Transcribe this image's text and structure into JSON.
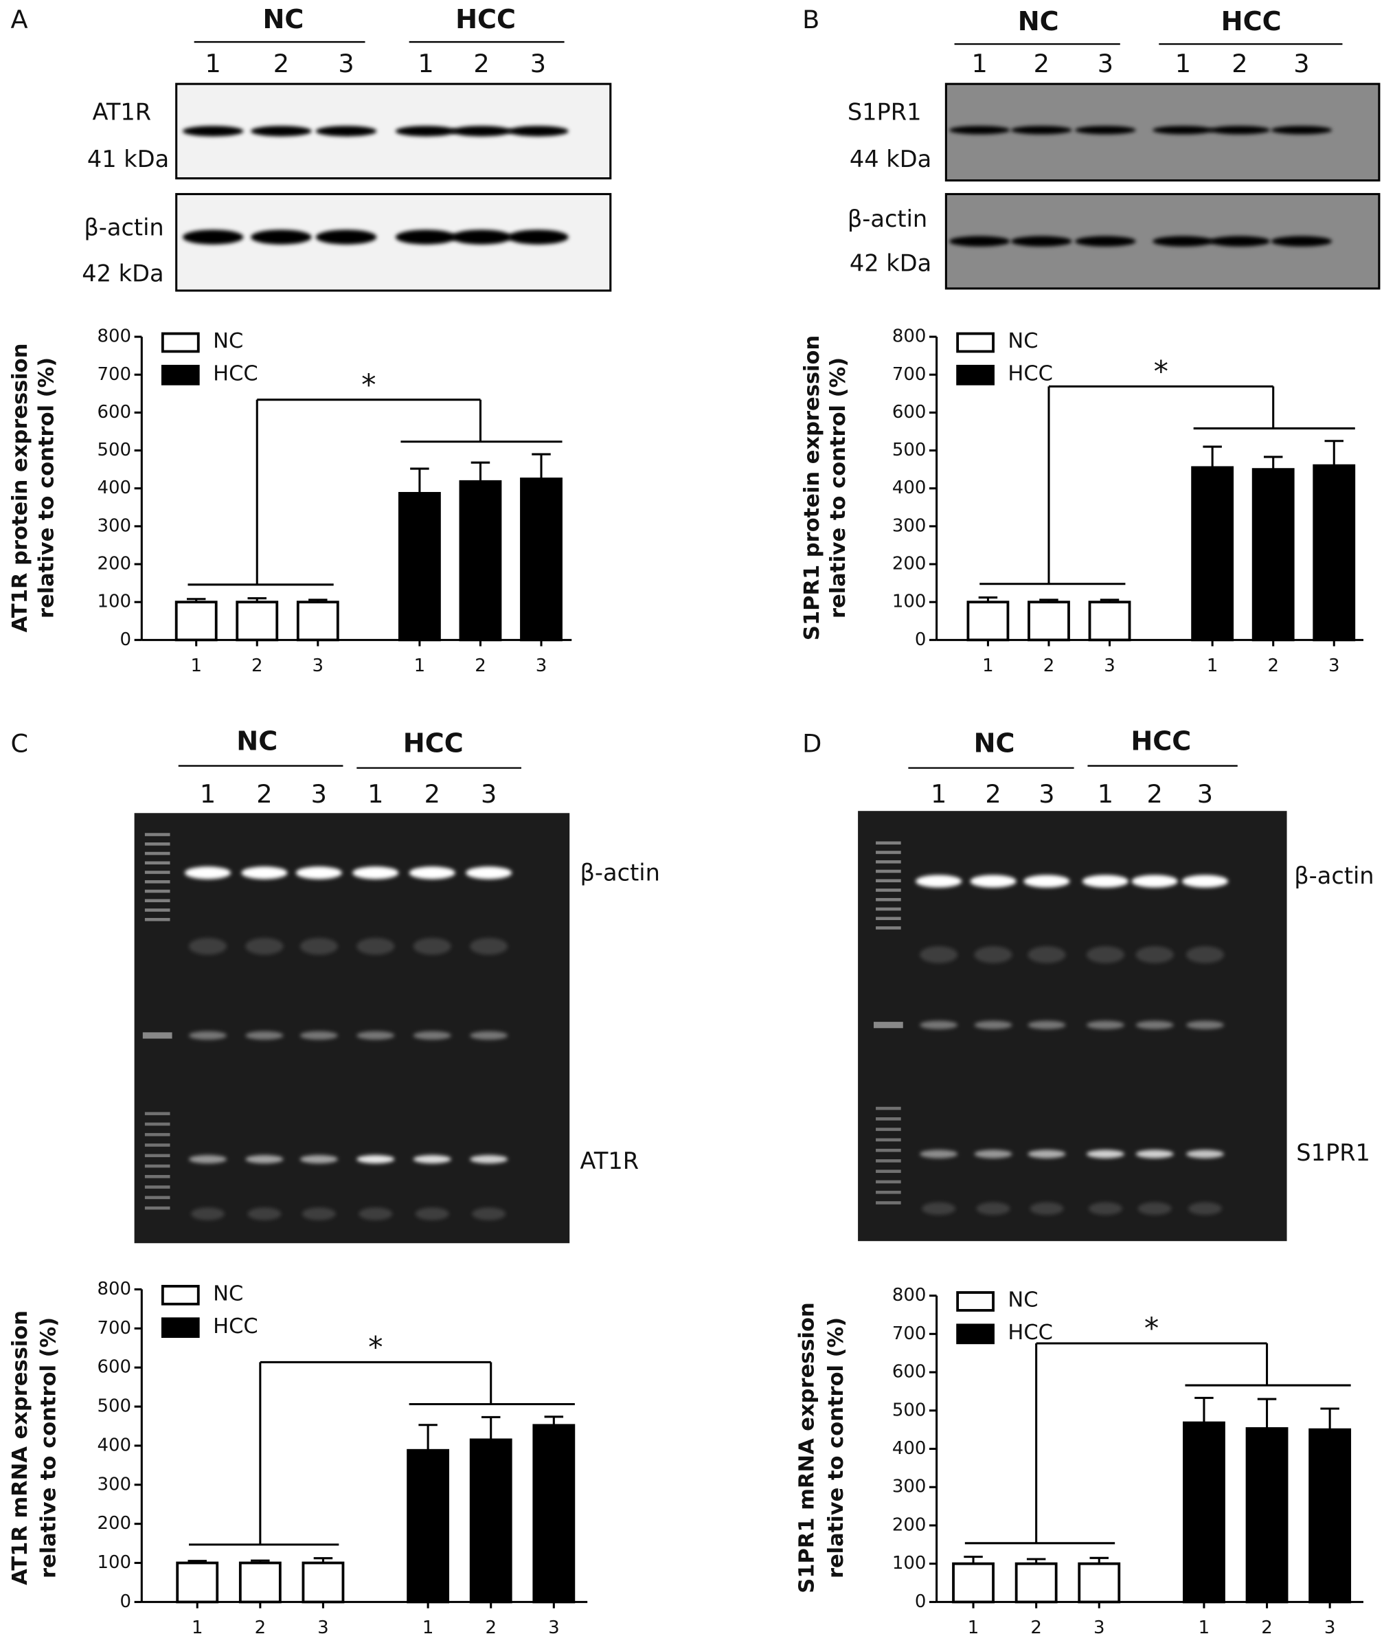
{
  "blots": [
    {
      "panel": "A",
      "groups": [
        "NC",
        "HCC"
      ],
      "lanes": [
        "1",
        "2",
        "3",
        "1",
        "2",
        "3"
      ],
      "labels": [
        "AT1R",
        "41 kDa",
        "β-actin",
        "42 kDa"
      ]
    },
    {
      "panel": "B",
      "groups": [
        "NC",
        "HCC"
      ],
      "lanes": [
        "1",
        "2",
        "3",
        "1",
        "2",
        "3"
      ],
      "labels": [
        "S1PR1",
        "44  kDa",
        "β-actin",
        "42  kDa"
      ]
    },
    {
      "panel": "C",
      "groups": [
        "NC",
        "HCC"
      ],
      "lanes": [
        "1",
        "2",
        "3",
        "1",
        "2",
        "3"
      ],
      "labels": [
        "β-actin",
        "AT1R"
      ]
    },
    {
      "panel": "D",
      "groups": [
        "NC",
        "HCC"
      ],
      "lanes": [
        "1",
        "2",
        "3",
        "1",
        "2",
        "3"
      ],
      "labels": [
        "β-actin",
        "S1PR1"
      ]
    }
  ],
  "chart_data": [
    {
      "type": "bar",
      "y_label": [
        "AT1R protein expression",
        "relative to control (%)"
      ],
      "categories": [
        "1",
        "2",
        "3",
        "1",
        "2",
        "3"
      ],
      "series": [
        {
          "name": "NC",
          "color": "#ffffff",
          "values": [
            100,
            100,
            100,
            null,
            null,
            null
          ],
          "errors": [
            8,
            10,
            6,
            null,
            null,
            null
          ]
        },
        {
          "name": "HCC",
          "color": "#000000",
          "values": [
            null,
            null,
            null,
            387,
            418,
            425
          ],
          "errors": [
            null,
            null,
            null,
            65,
            50,
            65
          ]
        }
      ],
      "annotations": [
        "*"
      ],
      "ylim": [
        0,
        800
      ],
      "yticks": [
        0,
        100,
        200,
        300,
        400,
        500,
        600,
        700,
        800
      ]
    },
    {
      "type": "bar",
      "y_label": [
        "S1PR1 protein expression",
        "relative to control (%)"
      ],
      "categories": [
        "1",
        "2",
        "3",
        "1",
        "2",
        "3"
      ],
      "series": [
        {
          "name": "NC",
          "color": "#ffffff",
          "values": [
            100,
            100,
            100,
            null,
            null,
            null
          ],
          "errors": [
            12,
            6,
            6,
            null,
            null,
            null
          ]
        },
        {
          "name": "HCC",
          "color": "#000000",
          "values": [
            null,
            null,
            null,
            455,
            450,
            460
          ],
          "errors": [
            null,
            null,
            null,
            55,
            33,
            65
          ]
        }
      ],
      "annotations": [
        "*"
      ],
      "ylim": [
        0,
        800
      ],
      "yticks": [
        0,
        100,
        200,
        300,
        400,
        500,
        600,
        700,
        800
      ]
    },
    {
      "type": "bar",
      "y_label": [
        "AT1R  mRNA expression",
        "relative to control (%)"
      ],
      "categories": [
        "1",
        "2",
        "3",
        "1",
        "2",
        "3"
      ],
      "series": [
        {
          "name": "NC",
          "color": "#ffffff",
          "values": [
            100,
            100,
            100,
            null,
            null,
            null
          ],
          "errors": [
            5,
            6,
            12,
            null,
            null,
            null
          ]
        },
        {
          "name": "HCC",
          "color": "#000000",
          "values": [
            null,
            null,
            null,
            388,
            415,
            452
          ],
          "errors": [
            null,
            null,
            null,
            65,
            58,
            22
          ]
        }
      ],
      "annotations": [
        "*"
      ],
      "ylim": [
        0,
        800
      ],
      "yticks": [
        0,
        100,
        200,
        300,
        400,
        500,
        600,
        700,
        800
      ]
    },
    {
      "type": "bar",
      "y_label": [
        "S1PR1 mRNA expression",
        "relative to control (%)"
      ],
      "categories": [
        "1",
        "2",
        "3",
        "1",
        "2",
        "3"
      ],
      "series": [
        {
          "name": "NC",
          "color": "#ffffff",
          "values": [
            100,
            100,
            100,
            null,
            null,
            null
          ],
          "errors": [
            18,
            12,
            15,
            null,
            null,
            null
          ]
        },
        {
          "name": "HCC",
          "color": "#000000",
          "values": [
            null,
            null,
            null,
            468,
            453,
            450
          ],
          "errors": [
            null,
            null,
            null,
            65,
            77,
            55
          ]
        }
      ],
      "annotations": [
        "*"
      ],
      "ylim": [
        0,
        800
      ],
      "yticks": [
        0,
        100,
        200,
        300,
        400,
        500,
        600,
        700,
        800
      ]
    }
  ]
}
